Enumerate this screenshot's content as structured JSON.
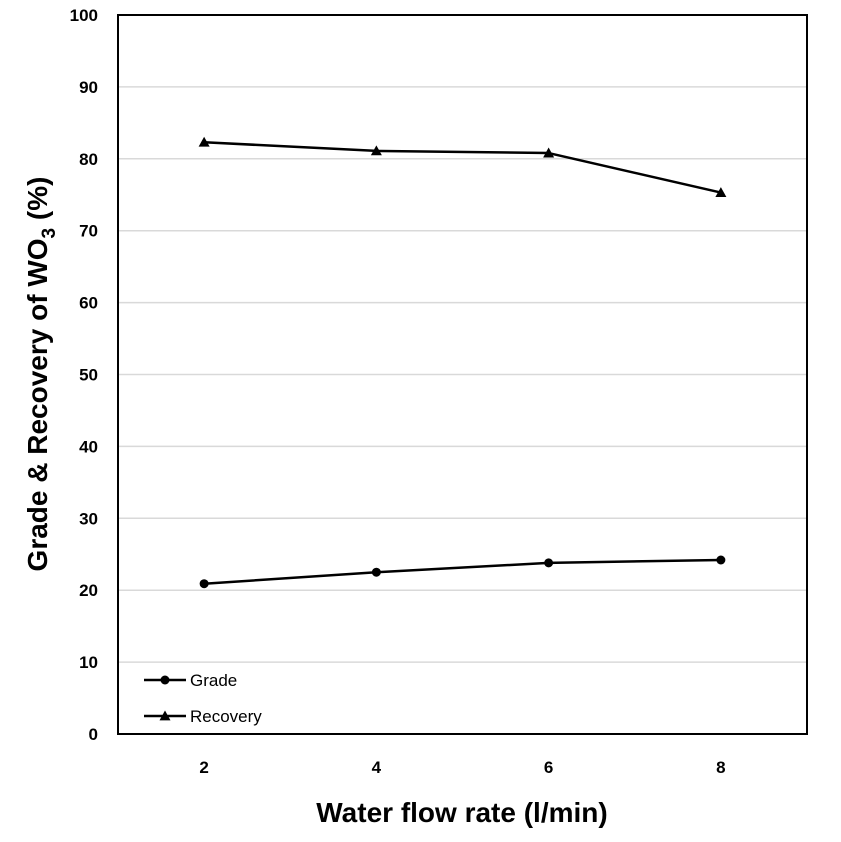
{
  "chart_data": {
    "type": "line",
    "xlabel": "Water flow rate (l/min)",
    "ylabel": {
      "main": "Grade & Recovery of WO",
      "subscript": "3",
      "suffix": " (%)"
    },
    "categories": [
      "2",
      "4",
      "6",
      "8"
    ],
    "x": [
      2,
      4,
      6,
      8
    ],
    "xlim": [
      1,
      9
    ],
    "ylim": [
      0,
      100
    ],
    "yticks": [
      0,
      10,
      20,
      30,
      40,
      50,
      60,
      70,
      80,
      90,
      100
    ],
    "grid": true,
    "legend_position": "bottom-left",
    "series": [
      {
        "name": "Grade",
        "marker": "circle",
        "values": [
          20.9,
          22.5,
          23.8,
          24.2
        ]
      },
      {
        "name": "Recovery",
        "marker": "triangle",
        "values": [
          82.3,
          81.1,
          80.8,
          75.3
        ]
      }
    ],
    "colors": {
      "line": "#000000",
      "grid": "#d9d9d9",
      "frame": "#000000"
    }
  }
}
